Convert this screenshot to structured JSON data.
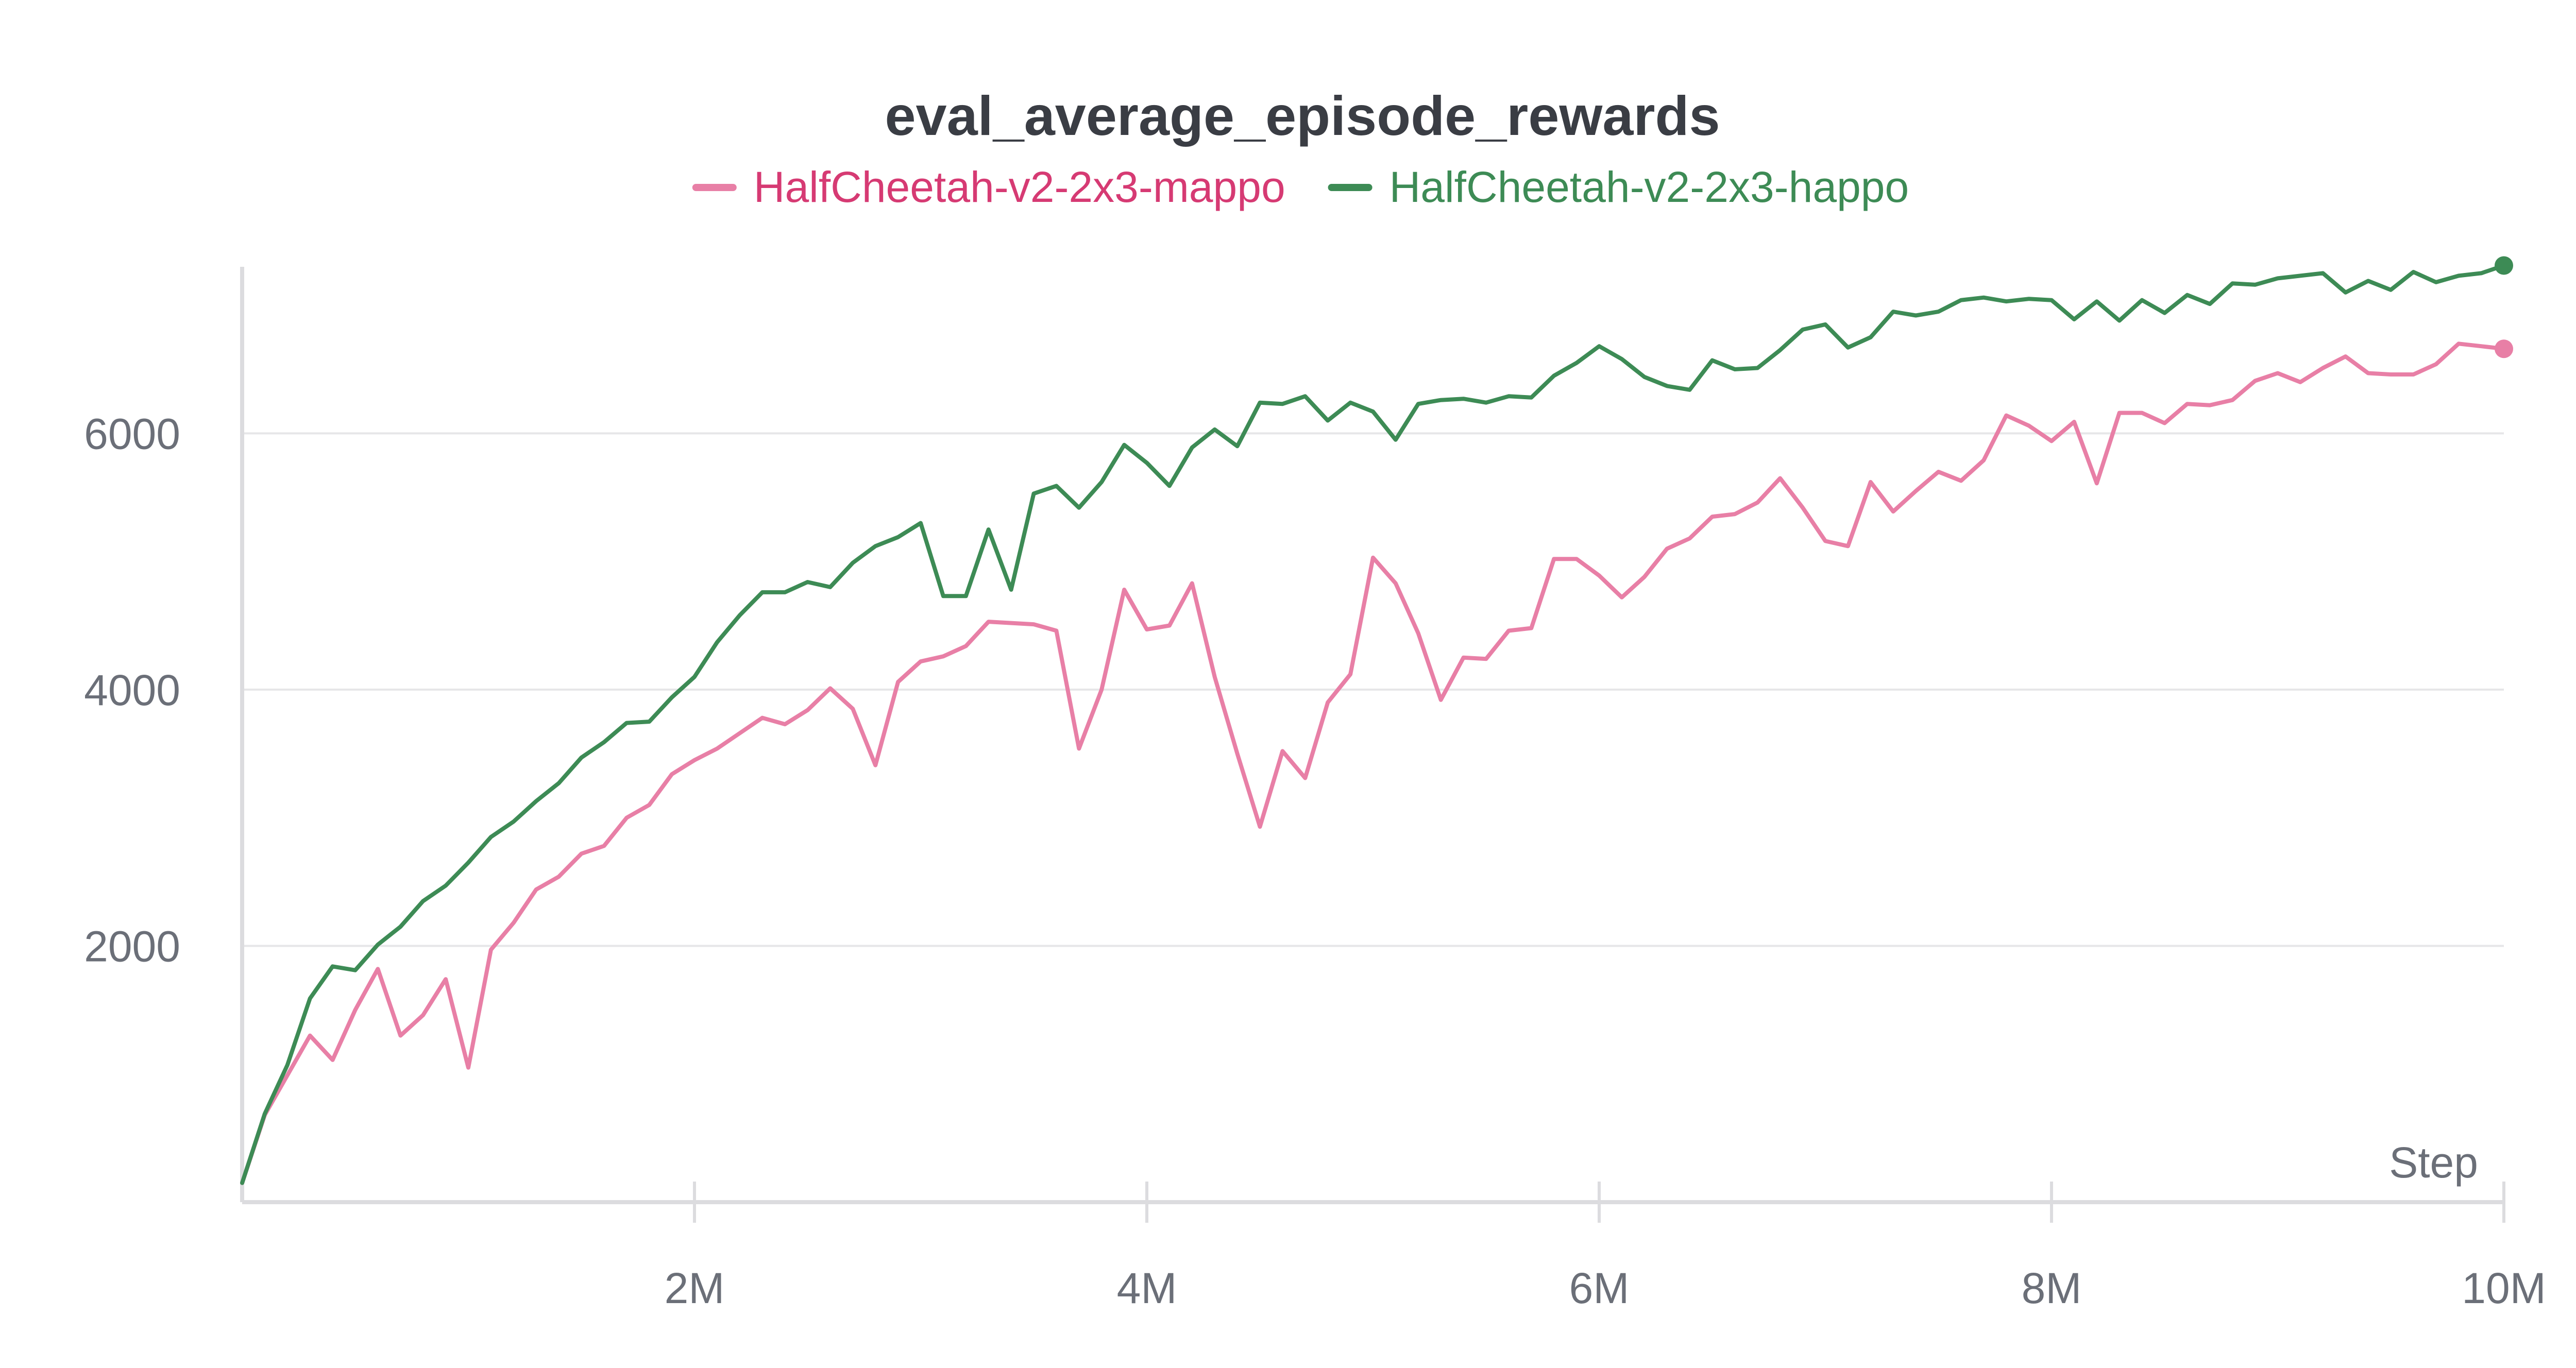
{
  "chart_data": {
    "type": "line",
    "title": "eval_average_episode_rewards",
    "xlabel": "Step",
    "ylabel": "",
    "xlim": [
      0,
      10000000
    ],
    "ylim": [
      0,
      7300
    ],
    "x_ticks": [
      {
        "value": 2000000,
        "label": "2M"
      },
      {
        "value": 4000000,
        "label": "4M"
      },
      {
        "value": 6000000,
        "label": "6M"
      },
      {
        "value": 8000000,
        "label": "8M"
      },
      {
        "value": 10000000,
        "label": "10M"
      }
    ],
    "y_ticks": [
      {
        "value": 2000,
        "label": "2000"
      },
      {
        "value": 4000,
        "label": "4000"
      },
      {
        "value": 6000,
        "label": "6000"
      }
    ],
    "grid": "horizontal",
    "legend_position": "top-center",
    "x": [
      0,
      100000,
      200000,
      300000,
      400000,
      500000,
      600000,
      700000,
      800000,
      900000,
      1000000,
      1100000,
      1200000,
      1300000,
      1400000,
      1500000,
      1600000,
      1700000,
      1800000,
      1900000,
      2000000,
      2100000,
      2200000,
      2300000,
      2400000,
      2500000,
      2600000,
      2700000,
      2800000,
      2900000,
      3000000,
      3100000,
      3200000,
      3300000,
      3400000,
      3500000,
      3600000,
      3700000,
      3800000,
      3900000,
      4000000,
      4100000,
      4200000,
      4300000,
      4400000,
      4500000,
      4600000,
      4700000,
      4800000,
      4900000,
      5000000,
      5100000,
      5200000,
      5300000,
      5400000,
      5500000,
      5600000,
      5700000,
      5800000,
      5900000,
      6000000,
      6100000,
      6200000,
      6300000,
      6400000,
      6500000,
      6600000,
      6700000,
      6800000,
      6900000,
      7000000,
      7100000,
      7200000,
      7300000,
      7400000,
      7500000,
      7600000,
      7700000,
      7800000,
      7900000,
      8000000,
      8100000,
      8200000,
      8300000,
      8400000,
      8500000,
      8600000,
      8700000,
      8800000,
      8900000,
      9000000,
      9100000,
      9200000,
      9300000,
      9400000,
      9500000,
      9600000,
      9700000,
      9800000,
      9900000,
      10000000
    ],
    "series": [
      {
        "name": "HalfCheetah-v2-2x3-mappo",
        "color": "#e87fa6",
        "label_color": "#d63a73",
        "values": [
          150,
          680,
          990,
          1300,
          1110,
          1500,
          1820,
          1300,
          1460,
          1740,
          1050,
          1970,
          2180,
          2440,
          2540,
          2720,
          2780,
          3000,
          3100,
          3340,
          3450,
          3540,
          3660,
          3780,
          3730,
          3840,
          4010,
          3850,
          3410,
          4060,
          4220,
          4260,
          4340,
          4530,
          4520,
          4510,
          4460,
          3540,
          4000,
          4780,
          4470,
          4500,
          4830,
          4100,
          3500,
          2930,
          3520,
          3310,
          3900,
          4120,
          5030,
          4830,
          4440,
          3920,
          4250,
          4240,
          4460,
          4480,
          5020,
          5020,
          4890,
          4720,
          4880,
          5100,
          5180,
          5350,
          5370,
          5460,
          5650,
          5420,
          5160,
          5120,
          5620,
          5390,
          5550,
          5700,
          5630,
          5790,
          6140,
          6060,
          5940,
          6090,
          5610,
          6160,
          6160,
          6080,
          6230,
          6220,
          6260,
          6410,
          6470,
          6400,
          6510,
          6600,
          6470,
          6460,
          6460,
          6540,
          6700,
          6680,
          6660
        ]
      },
      {
        "name": "HalfCheetah-v2-2x3-happo",
        "color": "#3d8b55",
        "label_color": "#3d8b55",
        "values": [
          150,
          690,
          1070,
          1590,
          1840,
          1810,
          2010,
          2150,
          2350,
          2470,
          2650,
          2850,
          2970,
          3130,
          3270,
          3470,
          3590,
          3740,
          3750,
          3940,
          4100,
          4370,
          4580,
          4760,
          4760,
          4840,
          4800,
          4990,
          5120,
          5190,
          5300,
          4730,
          4730,
          5250,
          4780,
          5530,
          5590,
          5420,
          5620,
          5910,
          5770,
          5590,
          5890,
          6030,
          5900,
          6240,
          6230,
          6290,
          6100,
          6240,
          6170,
          5950,
          6230,
          6260,
          6270,
          6240,
          6290,
          6280,
          6450,
          6550,
          6680,
          6580,
          6440,
          6370,
          6340,
          6570,
          6500,
          6510,
          6650,
          6810,
          6850,
          6670,
          6750,
          6950,
          6920,
          6950,
          7040,
          7060,
          7030,
          7050,
          7040,
          6890,
          7030,
          6880,
          7040,
          6940,
          7080,
          7010,
          7170,
          7160,
          7210,
          7230,
          7250,
          7100,
          7190,
          7120,
          7260,
          7180,
          7230,
          7250,
          7310
        ]
      }
    ]
  }
}
